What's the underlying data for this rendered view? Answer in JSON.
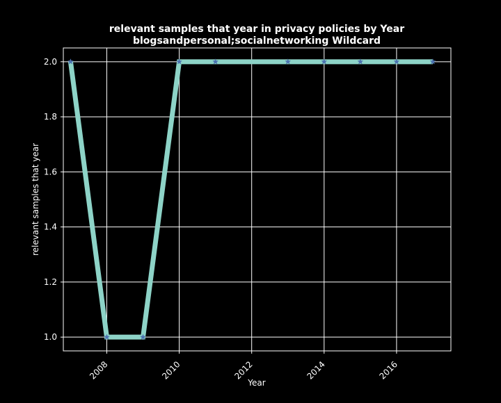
{
  "chart_data": {
    "type": "line",
    "title_line1": "relevant samples that year in privacy policies by Year",
    "title_line2": "blogsandpersonal;socialnetworking Wildcard",
    "xlabel": "Year",
    "ylabel": "relevant samples that year",
    "xlim": [
      2006.8,
      2017.5
    ],
    "ylim": [
      0.95,
      2.05
    ],
    "x_ticks": [
      2008,
      2010,
      2012,
      2014,
      2016
    ],
    "y_ticks": [
      1.0,
      1.2,
      1.4,
      1.6,
      1.8,
      2.0
    ],
    "y_tick_labels": [
      "1.0",
      "1.2",
      "1.4",
      "1.6",
      "1.8",
      "2.0"
    ],
    "grid": true,
    "series": [
      {
        "x": [
          2007,
          2008,
          2009,
          2010,
          2011,
          2013,
          2014,
          2015,
          2016,
          2017
        ],
        "y": [
          2,
          1,
          1,
          2,
          2,
          2,
          2,
          2,
          2,
          2
        ],
        "line_color": "#8dd3c7",
        "marker_color": "#4c72b0",
        "marker": "star"
      }
    ],
    "colors": {
      "background": "#000000",
      "axes_edge": "#ffffff",
      "grid": "#ffffff",
      "text": "#ffffff"
    }
  }
}
